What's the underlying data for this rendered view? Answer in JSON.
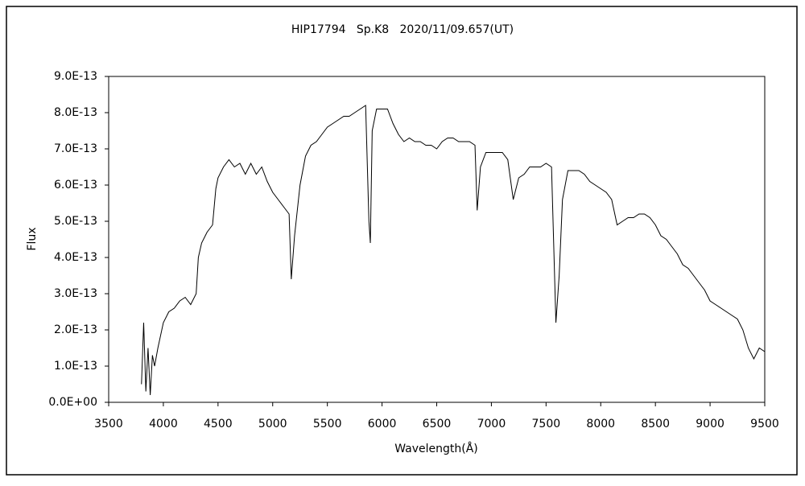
{
  "chart_data": {
    "type": "line",
    "title": "HIP17794   Sp.K8   2020/11/09.657(UT)",
    "x_label": "Wavelength(Å)",
    "y_label": "Flux",
    "grid": false,
    "xlim": [
      3500,
      9500
    ],
    "xticks": [
      3500,
      4000,
      4500,
      5000,
      5500,
      6000,
      6500,
      7000,
      7500,
      8000,
      8500,
      9000,
      9500
    ],
    "ylim": [
      0,
      9e-13
    ],
    "yticks": [
      {
        "value": 0,
        "label": "0.0E+00"
      },
      {
        "value": 1e-13,
        "label": "1.0E-13"
      },
      {
        "value": 2e-13,
        "label": "2.0E-13"
      },
      {
        "value": 3e-13,
        "label": "3.0E-13"
      },
      {
        "value": 4e-13,
        "label": "4.0E-13"
      },
      {
        "value": 5e-13,
        "label": "5.0E-13"
      },
      {
        "value": 6e-13,
        "label": "6.0E-13"
      },
      {
        "value": 7e-13,
        "label": "7.0E-13"
      },
      {
        "value": 8e-13,
        "label": "8.0E-13"
      },
      {
        "value": 9e-13,
        "label": "9.0E-13"
      }
    ],
    "x": [
      3800,
      3820,
      3840,
      3860,
      3880,
      3900,
      3920,
      3950,
      4000,
      4050,
      4100,
      4150,
      4200,
      4250,
      4300,
      4320,
      4350,
      4400,
      4450,
      4480,
      4500,
      4550,
      4600,
      4650,
      4700,
      4750,
      4800,
      4850,
      4900,
      4950,
      5000,
      5050,
      5100,
      5150,
      5170,
      5200,
      5250,
      5300,
      5350,
      5400,
      5450,
      5500,
      5550,
      5600,
      5650,
      5700,
      5750,
      5800,
      5850,
      5880,
      5893,
      5910,
      5950,
      6000,
      6050,
      6100,
      6150,
      6200,
      6250,
      6300,
      6350,
      6400,
      6450,
      6500,
      6550,
      6600,
      6650,
      6700,
      6750,
      6800,
      6850,
      6870,
      6900,
      6950,
      7000,
      7050,
      7100,
      7150,
      7200,
      7250,
      7300,
      7350,
      7400,
      7450,
      7500,
      7550,
      7590,
      7620,
      7650,
      7700,
      7750,
      7800,
      7850,
      7900,
      7950,
      8000,
      8050,
      8100,
      8150,
      8200,
      8250,
      8300,
      8350,
      8400,
      8450,
      8500,
      8550,
      8600,
      8650,
      8700,
      8750,
      8800,
      8850,
      8900,
      8950,
      9000,
      9050,
      9100,
      9150,
      9200,
      9250,
      9300,
      9350,
      9400,
      9450,
      9500
    ],
    "series": [
      {
        "color": "#000000",
        "values": [
          5e-14,
          2.2e-13,
          3e-14,
          1.5e-13,
          2e-14,
          1.3e-13,
          1e-13,
          1.5e-13,
          2.2e-13,
          2.5e-13,
          2.6e-13,
          2.8e-13,
          2.9e-13,
          2.7e-13,
          3e-13,
          4e-13,
          4.4e-13,
          4.7e-13,
          4.9e-13,
          5.9e-13,
          6.2e-13,
          6.5e-13,
          6.7e-13,
          6.5e-13,
          6.6e-13,
          6.3e-13,
          6.6e-13,
          6.3e-13,
          6.5e-13,
          6.1e-13,
          5.8e-13,
          5.6e-13,
          5.4e-13,
          5.2e-13,
          3.4e-13,
          4.6e-13,
          6e-13,
          6.8e-13,
          7.1e-13,
          7.2e-13,
          7.4e-13,
          7.6e-13,
          7.7e-13,
          7.8e-13,
          7.9e-13,
          7.9e-13,
          8e-13,
          8.1e-13,
          8.2e-13,
          5e-13,
          4.4e-13,
          7.5e-13,
          8.1e-13,
          8.1e-13,
          8.1e-13,
          7.7e-13,
          7.4e-13,
          7.2e-13,
          7.3e-13,
          7.2e-13,
          7.2e-13,
          7.1e-13,
          7.1e-13,
          7e-13,
          7.2e-13,
          7.3e-13,
          7.3e-13,
          7.2e-13,
          7.2e-13,
          7.2e-13,
          7.1e-13,
          5.3e-13,
          6.5e-13,
          6.9e-13,
          6.9e-13,
          6.9e-13,
          6.9e-13,
          6.7e-13,
          5.6e-13,
          6.2e-13,
          6.3e-13,
          6.5e-13,
          6.5e-13,
          6.5e-13,
          6.6e-13,
          6.5e-13,
          2.2e-13,
          3.5e-13,
          5.6e-13,
          6.4e-13,
          6.4e-13,
          6.4e-13,
          6.3e-13,
          6.1e-13,
          6e-13,
          5.9e-13,
          5.8e-13,
          5.6e-13,
          4.9e-13,
          5e-13,
          5.1e-13,
          5.1e-13,
          5.2e-13,
          5.2e-13,
          5.1e-13,
          4.9e-13,
          4.6e-13,
          4.5e-13,
          4.3e-13,
          4.1e-13,
          3.8e-13,
          3.7e-13,
          3.5e-13,
          3.3e-13,
          3.1e-13,
          2.8e-13,
          2.7e-13,
          2.6e-13,
          2.5e-13,
          2.4e-13,
          2.3e-13,
          2e-13,
          1.5e-13,
          1.2e-13,
          1.5e-13,
          1.4e-13
        ]
      }
    ]
  }
}
